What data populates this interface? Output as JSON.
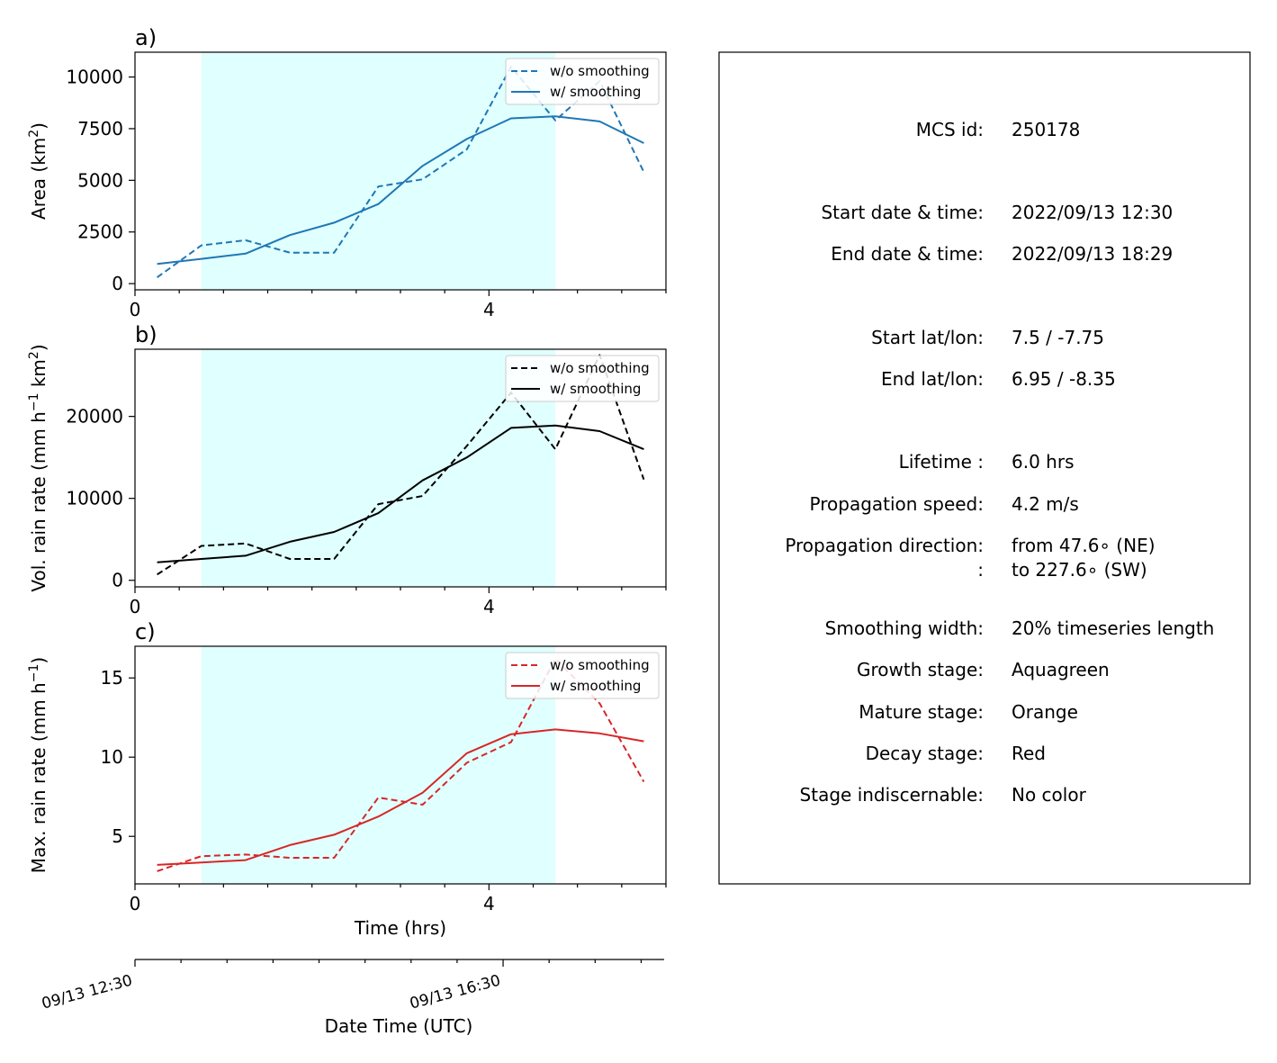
{
  "chart_data": [
    {
      "panel_label": "a)",
      "type": "line",
      "ylabel": "Area  (km",
      "ylabel_sup": "2",
      "ylabel_tail": ")",
      "xlim": [
        0,
        6
      ],
      "ylim": [
        -300,
        11200
      ],
      "yticks": [
        0,
        2500,
        5000,
        7500,
        10000
      ],
      "xticks": [
        0,
        4
      ],
      "xminor": [
        0.5,
        1,
        1.5,
        2,
        2.5,
        3,
        3.5,
        4.5,
        5,
        5.5,
        6
      ],
      "shaded_range": [
        0.75,
        4.75
      ],
      "shaded_color": "#e0ffff",
      "color": "#1f77b4",
      "legend": [
        "w/o smoothing",
        "w/ smoothing"
      ],
      "legend_position": "top-right",
      "x": [
        0.25,
        0.75,
        1.25,
        1.75,
        2.25,
        2.75,
        3.25,
        3.75,
        4.25,
        4.75,
        5.25,
        5.75
      ],
      "series": [
        {
          "name": "w/o smoothing",
          "dashed": true,
          "values": [
            300,
            1850,
            2100,
            1500,
            1500,
            4700,
            5050,
            6500,
            10500,
            7900,
            9800,
            5400
          ]
        },
        {
          "name": "w/ smoothing",
          "dashed": false,
          "values": [
            950,
            1200,
            1450,
            2350,
            2950,
            3850,
            5700,
            7000,
            8000,
            8100,
            7850,
            6800
          ]
        }
      ]
    },
    {
      "panel_label": "b)",
      "type": "line",
      "ylabel": "Vol. rain rate (mm h",
      "ylabel_sup": "−1",
      "ylabel_mid": " km",
      "ylabel_sup2": "2",
      "ylabel_tail": ")",
      "xlim": [
        0,
        6
      ],
      "ylim": [
        -800,
        28200
      ],
      "yticks": [
        0,
        10000,
        20000
      ],
      "xticks": [
        0,
        4
      ],
      "xminor": [
        0.5,
        1,
        1.5,
        2,
        2.5,
        3,
        3.5,
        4.5,
        5,
        5.5,
        6
      ],
      "shaded_range": [
        0.75,
        4.75
      ],
      "shaded_color": "#e0ffff",
      "color": "#000000",
      "legend": [
        "w/o smoothing",
        "w/ smoothing"
      ],
      "legend_position": "top-right",
      "x": [
        0.25,
        0.75,
        1.25,
        1.75,
        2.25,
        2.75,
        3.25,
        3.75,
        4.25,
        4.75,
        5.25,
        5.75
      ],
      "series": [
        {
          "name": "w/o smoothing",
          "dashed": true,
          "values": [
            700,
            4200,
            4500,
            2600,
            2600,
            9300,
            10300,
            16400,
            22900,
            16000,
            27500,
            12300
          ]
        },
        {
          "name": "w/ smoothing",
          "dashed": false,
          "values": [
            2200,
            2600,
            3000,
            4700,
            5900,
            8200,
            12200,
            15000,
            18600,
            18900,
            18200,
            16000
          ]
        }
      ]
    },
    {
      "panel_label": "c)",
      "type": "line",
      "ylabel": "Max. rain rate  (mm h",
      "ylabel_sup": "−1",
      "ylabel_tail": ")",
      "xlabel": "Time (hrs)",
      "xlim": [
        0,
        6
      ],
      "ylim": [
        2,
        17
      ],
      "yticks": [
        5,
        10,
        15
      ],
      "xticks": [
        0,
        4
      ],
      "xminor": [
        0.5,
        1,
        1.5,
        2,
        2.5,
        3,
        3.5,
        4.5,
        5,
        5.5,
        6
      ],
      "shaded_range": [
        0.75,
        4.75
      ],
      "shaded_color": "#e0ffff",
      "color": "#d62728",
      "legend": [
        "w/o smoothing",
        "w/ smoothing"
      ],
      "legend_position": "top-right",
      "x": [
        0.25,
        0.75,
        1.25,
        1.75,
        2.25,
        2.75,
        3.25,
        3.75,
        4.25,
        4.75,
        5.25,
        5.75
      ],
      "series": [
        {
          "name": "w/o smoothing",
          "dashed": true,
          "values": [
            2.8,
            3.75,
            3.85,
            3.65,
            3.65,
            7.45,
            7.0,
            9.65,
            10.95,
            16.2,
            13.4,
            8.45
          ]
        },
        {
          "name": "w/ smoothing",
          "dashed": false,
          "values": [
            3.2,
            3.35,
            3.5,
            4.45,
            5.1,
            6.25,
            7.75,
            10.25,
            11.45,
            11.75,
            11.5,
            11.0
          ]
        }
      ]
    }
  ],
  "datetime_axis": {
    "xlabel": "Date Time (UTC)",
    "tick_labels": [
      "09/13 12:30",
      "09/13 16:30"
    ],
    "tick_hours": [
      0,
      4
    ],
    "minor_hours": [
      0.5,
      1,
      1.5,
      2,
      2.5,
      3,
      3.5,
      4.5,
      5,
      5.5
    ]
  },
  "info_panel": {
    "rows": [
      {
        "label": "MCS id:",
        "value": "250178"
      },
      {
        "label": "Start date & time:",
        "value": "2022/09/13 12:30"
      },
      {
        "label": "End date & time:",
        "value": "2022/09/13 18:29"
      },
      {
        "label": "Start lat/lon:",
        "value": "7.5 / -7.75"
      },
      {
        "label": "End lat/lon:",
        "value": "6.95 / -8.35"
      },
      {
        "label": "Lifetime :",
        "value": "6.0 hrs"
      },
      {
        "label": "Propagation speed:",
        "value": "4.2 m/s"
      },
      {
        "label": "Propagation direction:",
        "value": "from  47.6∘ (NE)"
      },
      {
        "label": ":",
        "value": "to   227.6∘ (SW)"
      },
      {
        "label": "Smoothing width:",
        "value": "20% timeseries length"
      },
      {
        "label": "Growth stage:",
        "value": "Aquagreen"
      },
      {
        "label": "Mature stage:",
        "value": "Orange"
      },
      {
        "label": "Decay stage:",
        "value": "Red"
      },
      {
        "label": "Stage indiscernable:",
        "value": "No color"
      }
    ]
  }
}
